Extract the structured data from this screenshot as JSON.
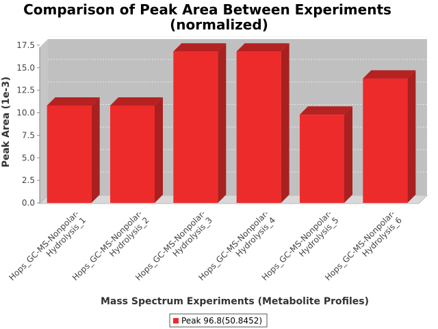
{
  "chart_data": {
    "type": "bar",
    "title_line1": "Comparison of Peak Area Between Experiments",
    "title_line2": "(normalized)",
    "xlabel": "Mass Spectrum Experiments (Metabolite Profiles)",
    "ylabel": "Peak Area (1e-3)",
    "categories": [
      [
        "Hops_GC-MS-Nonpolar-",
        "Hydrolysis_1"
      ],
      [
        "Hops_GC-MS-Nonpolar-",
        "Hydrolysis_2"
      ],
      [
        "Hops_GC-MS-Nonpolar-",
        "Hydrolysis_3"
      ],
      [
        "Hops_GC-MS-Nonpolar-",
        "Hydrolysis_4"
      ],
      [
        "Hops_GC-MS-Nonpolar-",
        "Hydrolysis_5"
      ],
      [
        "Hops_GC-MS-Nonpolar-",
        "Hydrolysis_6"
      ]
    ],
    "series": [
      {
        "name": "Peak 96.8(50.8452)",
        "values": [
          10.8,
          10.8,
          16.8,
          16.8,
          9.8,
          13.8
        ]
      }
    ],
    "yticks": [
      "0.0",
      "2.5",
      "5.0",
      "7.5",
      "10.0",
      "12.5",
      "15.0",
      "17.5"
    ],
    "ylim": [
      0,
      18.2
    ],
    "grid": true,
    "legend_position": "bottom",
    "colors": {
      "bar": "#ee2b2b",
      "bar_top": "#b52222",
      "bar_side": "#a82020",
      "plot_bg": "#c0c0c0"
    }
  }
}
